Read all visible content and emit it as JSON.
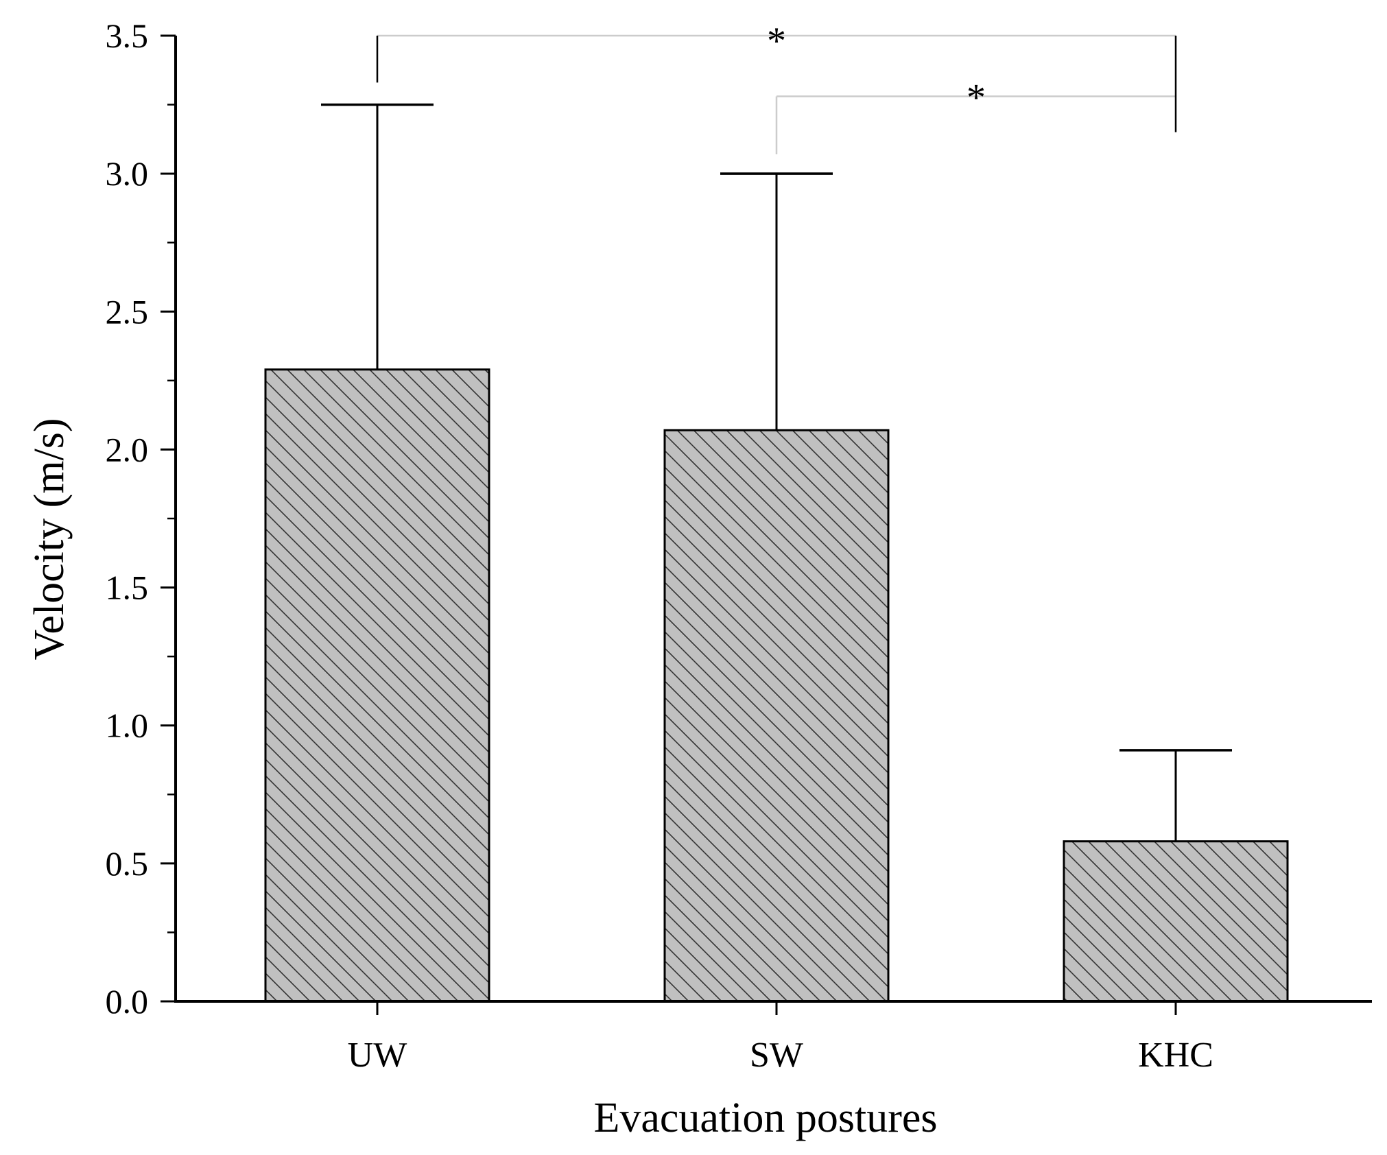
{
  "chart_data": {
    "type": "bar",
    "title": "",
    "xlabel": "Evacuation postures",
    "ylabel": "Velocity (m/s)",
    "categories": [
      "UW",
      "SW",
      "KHC"
    ],
    "values": [
      2.29,
      2.07,
      0.58
    ],
    "error_upper": [
      3.25,
      3.0,
      0.91
    ],
    "ylim": [
      0.0,
      3.5
    ],
    "yticks": [
      0.0,
      0.5,
      1.0,
      1.5,
      2.0,
      2.5,
      3.0,
      3.5
    ],
    "ytick_labels": [
      "0.0",
      "0.5",
      "1.0",
      "1.5",
      "2.0",
      "2.5",
      "3.0",
      "3.5"
    ],
    "grid": false,
    "legend": "none",
    "bar_fill": "#c0c0c0",
    "hatch": "diagonal",
    "significance": [
      {
        "from": "UW",
        "to": "KHC",
        "label": "*",
        "y": 3.5
      },
      {
        "from": "SW",
        "to": "KHC",
        "label": "*",
        "y": 3.28
      }
    ]
  }
}
